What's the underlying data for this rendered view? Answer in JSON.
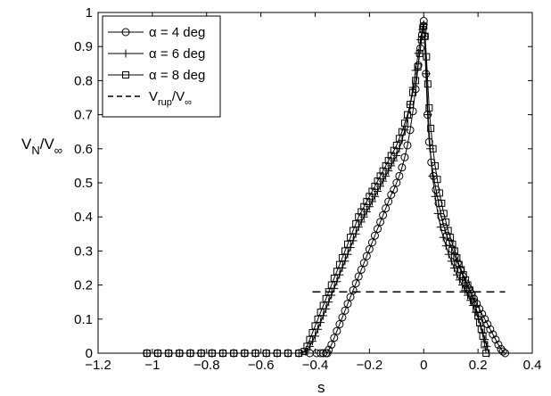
{
  "chart_data": {
    "type": "line",
    "xlabel": "s",
    "ylabel_main": "V",
    "ylabel_sub1": "N",
    "ylabel_sep": "/V",
    "ylabel_sub2": "∞",
    "xlim": [
      -1.2,
      0.4
    ],
    "ylim": [
      0,
      1
    ],
    "grid": false,
    "legend_position": "top-left",
    "x_ticks": [
      -1.2,
      -1,
      -0.8,
      -0.6,
      -0.4,
      -0.2,
      0,
      0.2,
      0.4
    ],
    "x_tick_labels": [
      "−1.2",
      "−1",
      "−0.8",
      "−0.6",
      "−0.4",
      "−0.2",
      "0",
      "0.2",
      "0.4"
    ],
    "y_ticks": [
      0,
      0.1,
      0.2,
      0.3,
      0.4,
      0.5,
      0.6,
      0.7,
      0.8,
      0.9,
      1
    ],
    "y_tick_labels": [
      "0",
      "0.1",
      "0.2",
      "0.3",
      "0.4",
      "0.5",
      "0.6",
      "0.7",
      "0.8",
      "0.9",
      "1"
    ],
    "series": [
      {
        "name": "α = 4 deg",
        "marker": "circle",
        "x": [
          -1.02,
          -0.98,
          -0.94,
          -0.9,
          -0.86,
          -0.82,
          -0.78,
          -0.74,
          -0.7,
          -0.66,
          -0.62,
          -0.58,
          -0.54,
          -0.5,
          -0.46,
          -0.42,
          -0.395,
          -0.38,
          -0.37,
          -0.36,
          -0.355,
          -0.35,
          -0.34,
          -0.33,
          -0.32,
          -0.31,
          -0.3,
          -0.29,
          -0.28,
          -0.27,
          -0.26,
          -0.25,
          -0.24,
          -0.23,
          -0.22,
          -0.21,
          -0.2,
          -0.19,
          -0.18,
          -0.17,
          -0.16,
          -0.15,
          -0.14,
          -0.13,
          -0.12,
          -0.11,
          -0.1,
          -0.09,
          -0.08,
          -0.07,
          -0.06,
          -0.05,
          -0.04,
          -0.03,
          -0.02,
          -0.012,
          -0.006,
          -0.002,
          0.0,
          0.003,
          0.008,
          0.014,
          0.02,
          0.028,
          0.036,
          0.045,
          0.055,
          0.065,
          0.075,
          0.085,
          0.095,
          0.105,
          0.115,
          0.125,
          0.135,
          0.145,
          0.155,
          0.165,
          0.175,
          0.185,
          0.195,
          0.205,
          0.215,
          0.225,
          0.235,
          0.245,
          0.255,
          0.265,
          0.275,
          0.285,
          0.292,
          0.3
        ],
        "y": [
          0.0,
          0.0,
          0.0,
          0.0,
          0.0,
          0.0,
          0.0,
          0.0,
          0.0,
          0.0,
          0.0,
          0.0,
          0.0,
          0.0,
          0.0,
          0.0,
          0.0,
          0.0,
          0.0,
          0.0,
          0.0,
          0.01,
          0.025,
          0.045,
          0.065,
          0.085,
          0.105,
          0.125,
          0.145,
          0.165,
          0.185,
          0.205,
          0.225,
          0.245,
          0.265,
          0.285,
          0.305,
          0.325,
          0.345,
          0.365,
          0.385,
          0.405,
          0.425,
          0.445,
          0.465,
          0.48,
          0.5,
          0.52,
          0.545,
          0.575,
          0.61,
          0.655,
          0.71,
          0.775,
          0.845,
          0.895,
          0.935,
          0.96,
          0.975,
          0.93,
          0.82,
          0.7,
          0.62,
          0.56,
          0.52,
          0.48,
          0.44,
          0.4,
          0.37,
          0.345,
          0.325,
          0.305,
          0.285,
          0.265,
          0.245,
          0.225,
          0.205,
          0.19,
          0.175,
          0.16,
          0.145,
          0.13,
          0.115,
          0.1,
          0.085,
          0.07,
          0.055,
          0.04,
          0.025,
          0.012,
          0.005,
          0.0
        ]
      },
      {
        "name": "α = 6 deg",
        "marker": "plus",
        "x": [
          -1.02,
          -0.98,
          -0.94,
          -0.9,
          -0.86,
          -0.82,
          -0.78,
          -0.74,
          -0.7,
          -0.66,
          -0.62,
          -0.58,
          -0.54,
          -0.5,
          -0.46,
          -0.435,
          -0.42,
          -0.41,
          -0.4,
          -0.39,
          -0.38,
          -0.37,
          -0.36,
          -0.35,
          -0.34,
          -0.33,
          -0.32,
          -0.31,
          -0.3,
          -0.29,
          -0.28,
          -0.27,
          -0.26,
          -0.25,
          -0.24,
          -0.23,
          -0.22,
          -0.21,
          -0.2,
          -0.19,
          -0.18,
          -0.17,
          -0.16,
          -0.15,
          -0.14,
          -0.13,
          -0.12,
          -0.11,
          -0.1,
          -0.09,
          -0.08,
          -0.07,
          -0.06,
          -0.05,
          -0.04,
          -0.03,
          -0.02,
          -0.012,
          -0.005,
          0.0,
          0.004,
          0.01,
          0.016,
          0.024,
          0.032,
          0.042,
          0.052,
          0.062,
          0.072,
          0.082,
          0.092,
          0.102,
          0.112,
          0.122,
          0.132,
          0.142,
          0.152,
          0.162,
          0.172,
          0.182,
          0.192,
          0.202,
          0.21,
          0.218,
          0.225,
          0.232,
          0.24
        ],
        "y": [
          0.0,
          0.0,
          0.0,
          0.0,
          0.0,
          0.0,
          0.0,
          0.0,
          0.0,
          0.0,
          0.0,
          0.0,
          0.0,
          0.0,
          0.0,
          0.005,
          0.02,
          0.035,
          0.05,
          0.07,
          0.09,
          0.11,
          0.13,
          0.15,
          0.17,
          0.19,
          0.21,
          0.23,
          0.25,
          0.27,
          0.29,
          0.31,
          0.33,
          0.35,
          0.37,
          0.385,
          0.4,
          0.415,
          0.43,
          0.445,
          0.46,
          0.475,
          0.49,
          0.505,
          0.52,
          0.535,
          0.55,
          0.565,
          0.58,
          0.6,
          0.625,
          0.655,
          0.69,
          0.73,
          0.78,
          0.83,
          0.88,
          0.92,
          0.95,
          0.965,
          0.93,
          0.82,
          0.7,
          0.6,
          0.52,
          0.46,
          0.41,
          0.37,
          0.34,
          0.315,
          0.29,
          0.27,
          0.25,
          0.23,
          0.215,
          0.2,
          0.185,
          0.17,
          0.155,
          0.14,
          0.12,
          0.1,
          0.08,
          0.06,
          0.04,
          0.02,
          0.0
        ]
      },
      {
        "name": "α = 8 deg",
        "marker": "square",
        "x": [
          -1.02,
          -0.98,
          -0.94,
          -0.9,
          -0.86,
          -0.82,
          -0.78,
          -0.74,
          -0.7,
          -0.66,
          -0.62,
          -0.58,
          -0.54,
          -0.5,
          -0.46,
          -0.44,
          -0.43,
          -0.42,
          -0.41,
          -0.4,
          -0.39,
          -0.38,
          -0.37,
          -0.36,
          -0.35,
          -0.34,
          -0.33,
          -0.32,
          -0.31,
          -0.3,
          -0.29,
          -0.28,
          -0.27,
          -0.26,
          -0.25,
          -0.24,
          -0.23,
          -0.22,
          -0.21,
          -0.2,
          -0.19,
          -0.18,
          -0.17,
          -0.16,
          -0.15,
          -0.14,
          -0.13,
          -0.12,
          -0.11,
          -0.1,
          -0.09,
          -0.08,
          -0.07,
          -0.06,
          -0.05,
          -0.04,
          -0.03,
          -0.022,
          -0.015,
          -0.008,
          -0.003,
          0.0,
          0.005,
          0.01,
          0.015,
          0.02,
          0.026,
          0.034,
          0.042,
          0.05,
          0.058,
          0.066,
          0.074,
          0.082,
          0.09,
          0.098,
          0.106,
          0.114,
          0.122,
          0.13,
          0.138,
          0.146,
          0.154,
          0.162,
          0.17,
          0.178,
          0.186,
          0.194,
          0.2,
          0.206,
          0.212,
          0.218,
          0.224,
          0.23
        ],
        "y": [
          0.0,
          0.0,
          0.0,
          0.0,
          0.0,
          0.0,
          0.0,
          0.0,
          0.0,
          0.0,
          0.0,
          0.0,
          0.0,
          0.0,
          0.0,
          0.005,
          0.02,
          0.04,
          0.06,
          0.08,
          0.1,
          0.12,
          0.14,
          0.16,
          0.18,
          0.2,
          0.22,
          0.24,
          0.26,
          0.28,
          0.3,
          0.32,
          0.34,
          0.36,
          0.38,
          0.4,
          0.415,
          0.43,
          0.445,
          0.46,
          0.475,
          0.49,
          0.505,
          0.52,
          0.535,
          0.55,
          0.565,
          0.58,
          0.595,
          0.61,
          0.63,
          0.65,
          0.675,
          0.7,
          0.73,
          0.765,
          0.8,
          0.84,
          0.88,
          0.92,
          0.95,
          0.96,
          0.93,
          0.87,
          0.79,
          0.72,
          0.66,
          0.6,
          0.55,
          0.51,
          0.47,
          0.44,
          0.41,
          0.385,
          0.36,
          0.34,
          0.32,
          0.3,
          0.28,
          0.26,
          0.245,
          0.23,
          0.215,
          0.2,
          0.185,
          0.17,
          0.15,
          0.13,
          0.11,
          0.09,
          0.07,
          0.05,
          0.025,
          0.0
        ]
      },
      {
        "name": "V_rup/V_∞",
        "marker": "none",
        "dashed": true,
        "x": [
          -0.41,
          0.3
        ],
        "y": [
          0.18,
          0.18
        ]
      }
    ]
  },
  "legend": {
    "items": [
      {
        "marker": "circle",
        "pre": "α = 4 deg"
      },
      {
        "marker": "plus",
        "pre": "α = 6 deg"
      },
      {
        "marker": "square",
        "pre": "α = 8 deg"
      },
      {
        "marker": "dashed",
        "pre": "V",
        "sub1": "rup",
        "mid": "/V",
        "sub2": "∞"
      }
    ]
  }
}
